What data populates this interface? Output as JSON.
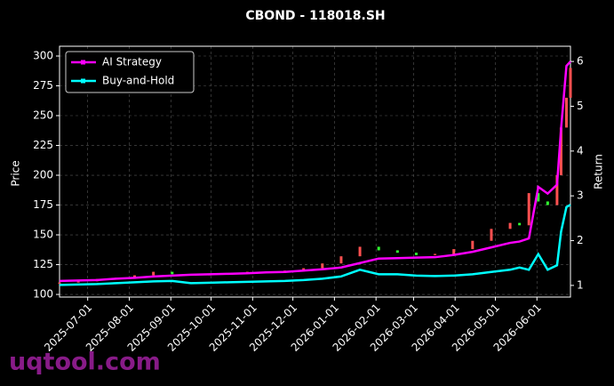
{
  "chart_data": {
    "type": "candlestick-returns",
    "title": "CBOND - 118018.SH",
    "ylabel": "Price",
    "y2label": "Return",
    "watermark": "uqtool.com",
    "x": [
      "2025-06-10",
      "2025-06-24",
      "2025-07-08",
      "2025-07-22",
      "2025-08-05",
      "2025-08-19",
      "2025-09-02",
      "2025-09-16",
      "2025-09-30",
      "2025-10-14",
      "2025-10-28",
      "2025-11-11",
      "2025-11-25",
      "2025-12-09",
      "2025-12-23",
      "2026-01-06",
      "2026-01-20",
      "2026-02-03",
      "2026-02-17",
      "2026-03-03",
      "2026-03-17",
      "2026-03-31",
      "2026-04-14",
      "2026-04-28",
      "2026-05-12",
      "2026-05-19",
      "2026-05-26",
      "2026-06-02",
      "2026-06-09",
      "2026-06-16",
      "2026-06-19",
      "2026-06-23",
      "2026-06-26"
    ],
    "open": [
      109,
      110,
      111,
      113,
      114,
      116,
      119,
      117,
      116,
      117,
      118,
      119,
      118,
      120,
      122,
      126,
      132,
      140,
      137,
      135,
      133,
      134,
      138,
      145,
      155,
      160,
      158,
      185,
      178,
      175,
      200,
      240,
      265
    ],
    "close": [
      110,
      111,
      113,
      114,
      116,
      119,
      117,
      116,
      117,
      118,
      119,
      118,
      120,
      122,
      126,
      132,
      140,
      137,
      135,
      133,
      134,
      138,
      145,
      155,
      160,
      158,
      185,
      178,
      175,
      200,
      240,
      265,
      290
    ],
    "up_color": "#ff5050",
    "down_color": "#30ff30",
    "series": [
      {
        "name": "AI Strategy",
        "color": "#ff00ff",
        "axis": "y2",
        "values": [
          1.1,
          1.11,
          1.12,
          1.15,
          1.17,
          1.2,
          1.22,
          1.24,
          1.25,
          1.26,
          1.27,
          1.29,
          1.3,
          1.33,
          1.36,
          1.4,
          1.5,
          1.6,
          1.61,
          1.62,
          1.63,
          1.68,
          1.75,
          1.85,
          1.95,
          1.98,
          2.05,
          3.2,
          3.05,
          3.25,
          4.5,
          5.9,
          6.0
        ]
      },
      {
        "name": "Buy-and-Hold",
        "color": "#00ffff",
        "axis": "y2",
        "values": [
          1.01,
          1.02,
          1.03,
          1.05,
          1.07,
          1.09,
          1.1,
          1.05,
          1.06,
          1.07,
          1.08,
          1.09,
          1.1,
          1.12,
          1.15,
          1.2,
          1.35,
          1.25,
          1.25,
          1.22,
          1.21,
          1.22,
          1.25,
          1.3,
          1.35,
          1.4,
          1.35,
          1.7,
          1.35,
          1.45,
          2.2,
          2.75,
          2.8
        ]
      }
    ],
    "xlim": [
      "2025-06-10",
      "2026-06-26"
    ],
    "xticks": [
      "2025-07-01",
      "2025-08-01",
      "2025-09-01",
      "2025-10-01",
      "2025-11-01",
      "2025-12-01",
      "2026-01-01",
      "2026-02-01",
      "2026-03-01",
      "2026-04-01",
      "2026-05-01",
      "2026-06-01"
    ],
    "ylim": [
      97.8,
      308.2
    ],
    "yticks": [
      100,
      125,
      150,
      175,
      200,
      225,
      250,
      275,
      300
    ],
    "y2lim": [
      0.74,
      6.34
    ],
    "y2ticks": [
      1,
      2,
      3,
      4,
      5,
      6
    ],
    "grid": true,
    "legend": "upper left"
  }
}
